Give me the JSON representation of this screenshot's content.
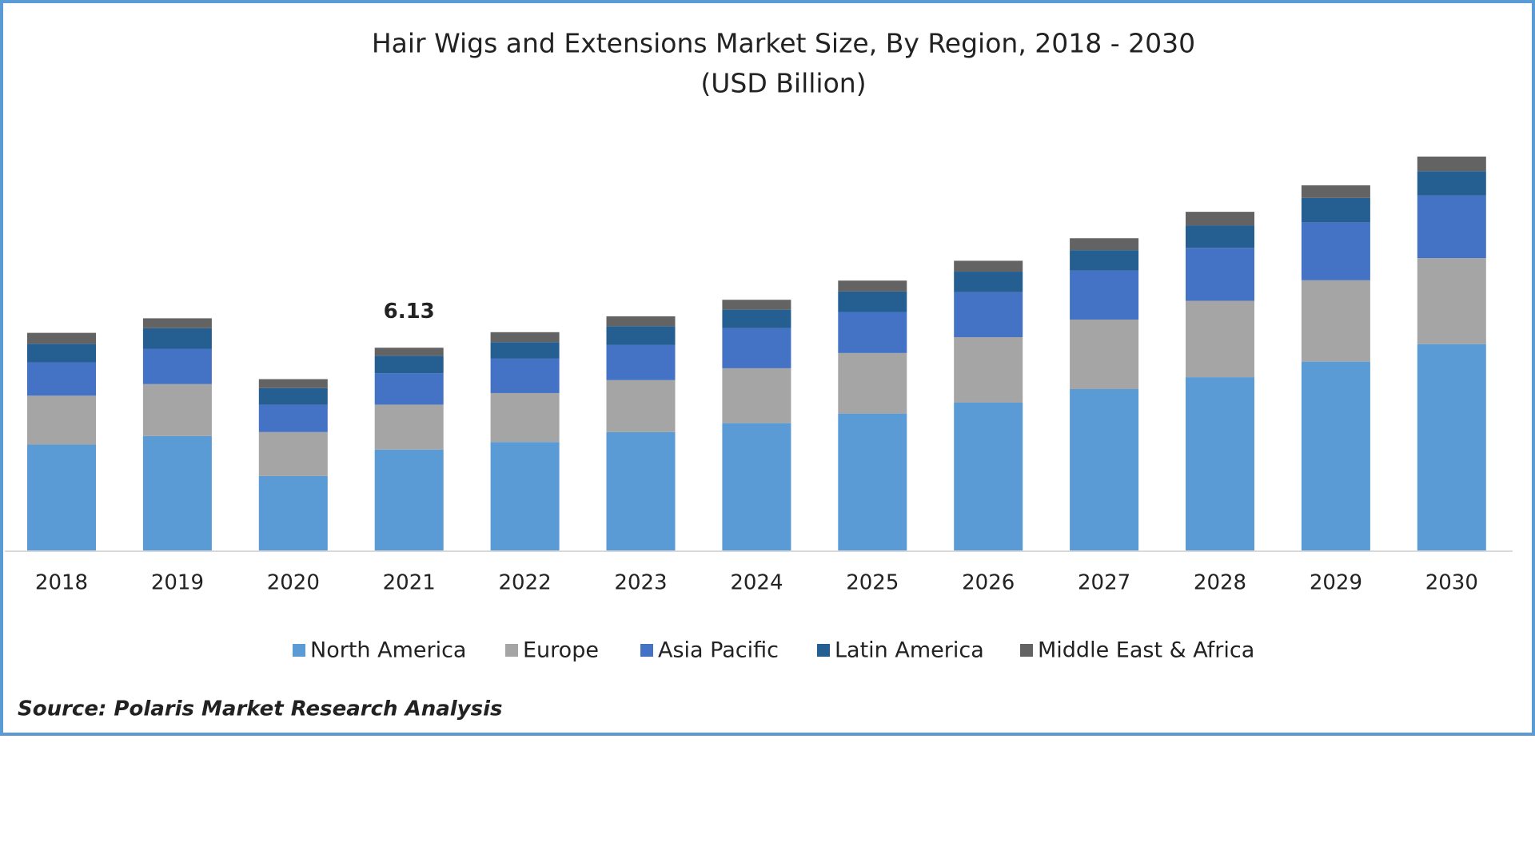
{
  "chart_data": {
    "type": "stacked-bar",
    "title": "Hair Wigs and Extensions Market Size, By Region, 2018 - 2030",
    "subtitle": "(USD Billion)",
    "source": "Source: Polaris  Market Research Analysis",
    "categories": [
      "2018",
      "2019",
      "2020",
      "2021",
      "2022",
      "2023",
      "2024",
      "2025",
      "2026",
      "2027",
      "2028",
      "2029",
      "2030"
    ],
    "series": [
      {
        "name": "North America",
        "color": "#5b9bd5",
        "values": [
          3.2,
          3.46,
          2.25,
          3.05,
          3.28,
          3.58,
          3.85,
          4.14,
          4.47,
          4.88,
          5.24,
          5.71,
          6.24
        ]
      },
      {
        "name": "Europe",
        "color": "#a5a5a5",
        "values": [
          1.48,
          1.57,
          1.33,
          1.36,
          1.48,
          1.57,
          1.66,
          1.83,
          1.98,
          2.1,
          2.31,
          2.46,
          2.6
        ]
      },
      {
        "name": "Asia Pacific",
        "color": "#4472c4",
        "values": [
          1.01,
          1.07,
          0.83,
          0.95,
          1.04,
          1.07,
          1.21,
          1.24,
          1.36,
          1.48,
          1.6,
          1.75,
          1.89
        ]
      },
      {
        "name": "Latin America",
        "color": "#255e91",
        "values": [
          0.56,
          0.62,
          0.5,
          0.53,
          0.5,
          0.56,
          0.56,
          0.62,
          0.62,
          0.62,
          0.68,
          0.74,
          0.74
        ]
      },
      {
        "name": "Middle East & Africa",
        "color": "#636363",
        "values": [
          0.33,
          0.3,
          0.27,
          0.24,
          0.3,
          0.3,
          0.3,
          0.33,
          0.33,
          0.36,
          0.41,
          0.38,
          0.44
        ]
      }
    ],
    "totals": [
      null,
      null,
      null,
      6.13,
      null,
      null,
      null,
      null,
      null,
      null,
      null,
      null,
      null
    ],
    "legend": "bottom"
  }
}
